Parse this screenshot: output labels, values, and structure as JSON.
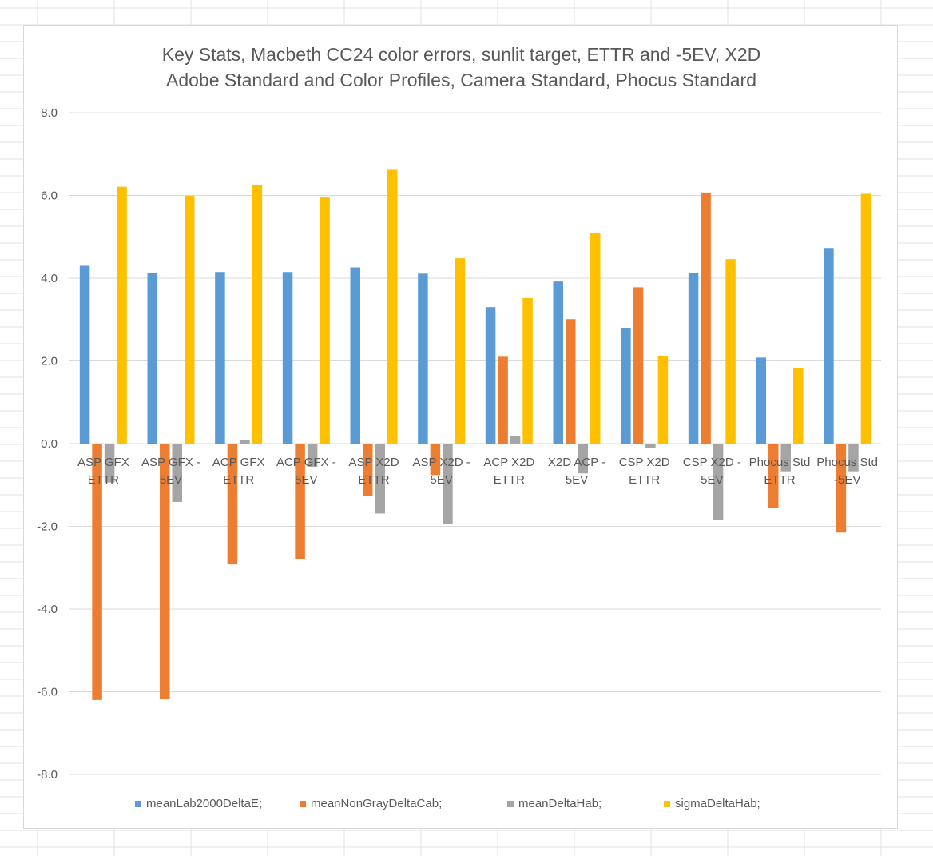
{
  "colors": {
    "meanLab2000DeltaE": "#5b9bd5",
    "meanNonGrayDeltaCab": "#ed7d31",
    "meanDeltaHab": "#a5a5a5",
    "sigmaDeltaHab": "#ffc000",
    "gridline": "#d9d9d9",
    "text": "#595959"
  },
  "chart_data": {
    "type": "bar",
    "title_lines": [
      "Key Stats, Macbeth CC24 color errors, sunlit target, ETTR and -5EV, X2D",
      "Adobe Standard and Color Profiles, Camera Standard, Phocus Standard"
    ],
    "categories": [
      [
        "ASP GFX",
        "ETTR"
      ],
      [
        "ASP GFX -",
        "5EV"
      ],
      [
        "ACP GFX",
        "ETTR"
      ],
      [
        "ACP GFX -",
        "5EV"
      ],
      [
        "ASP X2D",
        "ETTR"
      ],
      [
        "ASP X2D -",
        "5EV"
      ],
      [
        "ACP X2D",
        "ETTR"
      ],
      [
        "X2D ACP -",
        "5EV"
      ],
      [
        "CSP X2D",
        "ETTR"
      ],
      [
        "CSP X2D -",
        "5EV"
      ],
      [
        "Phocus Std",
        "ETTR"
      ],
      [
        "Phocus Std",
        "-5EV"
      ]
    ],
    "series": [
      {
        "name": "meanLab2000DeltaE;",
        "values": [
          4.3,
          4.12,
          4.15,
          4.15,
          4.26,
          4.11,
          3.3,
          3.92,
          2.8,
          4.13,
          2.08,
          4.73
        ]
      },
      {
        "name": "meanNonGrayDeltaCab;",
        "values": [
          -6.2,
          -6.17,
          -2.92,
          -2.8,
          -1.26,
          -0.76,
          2.1,
          3.01,
          3.78,
          6.07,
          -1.55,
          -2.15
        ]
      },
      {
        "name": "meanDeltaHab;",
        "values": [
          -0.94,
          -1.41,
          0.08,
          -0.56,
          -1.69,
          -1.94,
          0.18,
          -0.72,
          -0.1,
          -1.84,
          -0.67,
          -0.67
        ]
      },
      {
        "name": "sigmaDeltaHab;",
        "values": [
          6.21,
          5.99,
          6.25,
          5.95,
          6.62,
          4.48,
          3.52,
          5.09,
          2.12,
          4.46,
          1.83,
          6.04
        ]
      }
    ],
    "ylim": [
      -8.0,
      8.0
    ],
    "yticks": [
      "8.0",
      "6.0",
      "4.0",
      "2.0",
      "0.0",
      "-2.0",
      "-4.0",
      "-6.0",
      "-8.0"
    ],
    "grid": true,
    "legend_position": "bottom"
  }
}
